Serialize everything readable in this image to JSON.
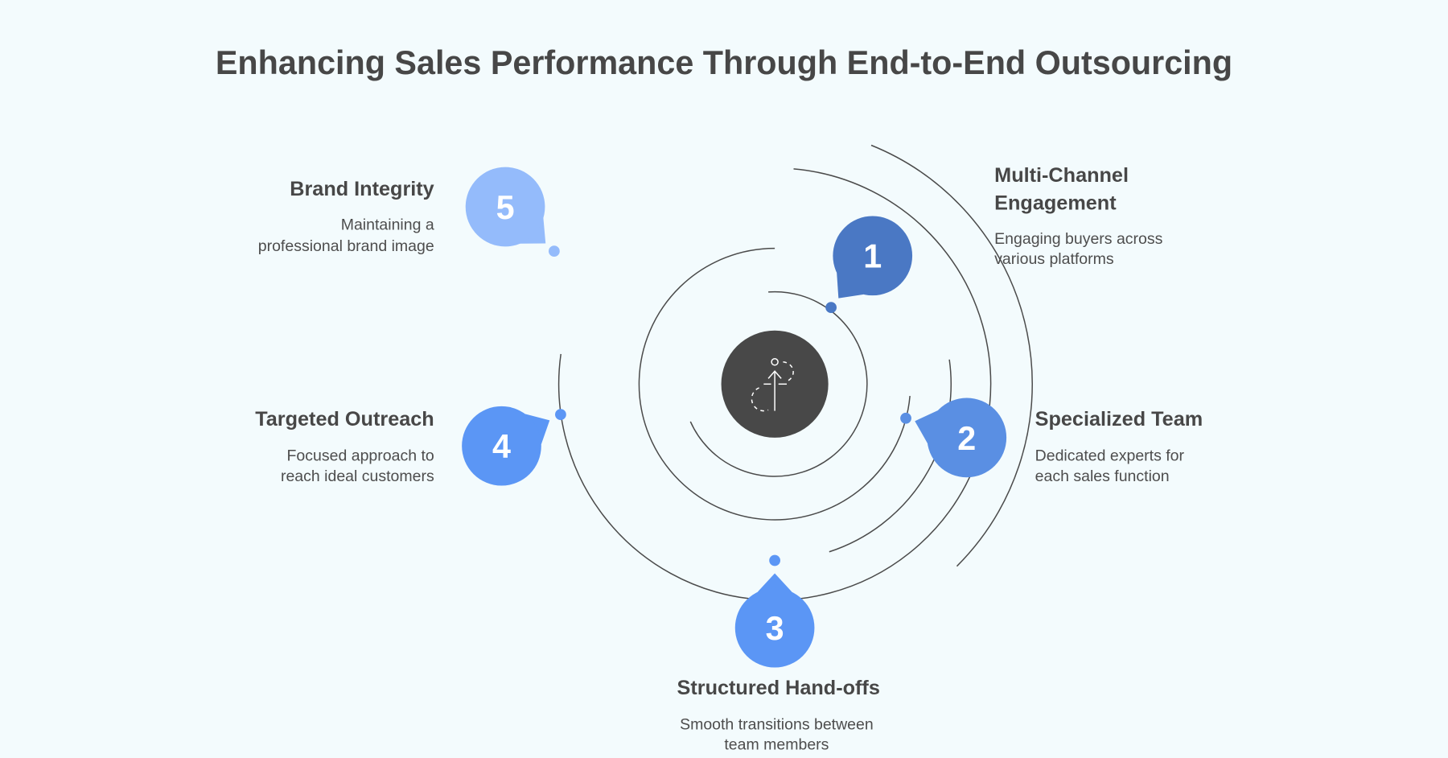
{
  "title": "Enhancing Sales Performance Through End-to-End Outsourcing",
  "center_icon": "person-climbing-arrow-icon",
  "colors": {
    "background": "#f3fbfd",
    "center": "#484848",
    "step1": "#4a78c4",
    "step2": "#5a8fe3",
    "step3": "#5b96f5",
    "step4": "#5b96f5",
    "step5": "#94bbfb"
  },
  "steps": [
    {
      "number": "1",
      "title_lines": [
        "Multi-Channel",
        "Engagement"
      ],
      "desc_lines": [
        "Engaging buyers across",
        "various platforms"
      ]
    },
    {
      "number": "2",
      "title_lines": [
        "Specialized Team"
      ],
      "desc_lines": [
        "Dedicated experts for",
        "each sales function"
      ]
    },
    {
      "number": "3",
      "title_lines": [
        "Structured Hand-offs"
      ],
      "desc_lines": [
        "Smooth transitions between",
        "team members"
      ]
    },
    {
      "number": "4",
      "title_lines": [
        "Targeted Outreach"
      ],
      "desc_lines": [
        "Focused approach to",
        "reach ideal customers"
      ]
    },
    {
      "number": "5",
      "title_lines": [
        "Brand Integrity"
      ],
      "desc_lines": [
        "Maintaining a",
        "professional brand image"
      ]
    }
  ]
}
